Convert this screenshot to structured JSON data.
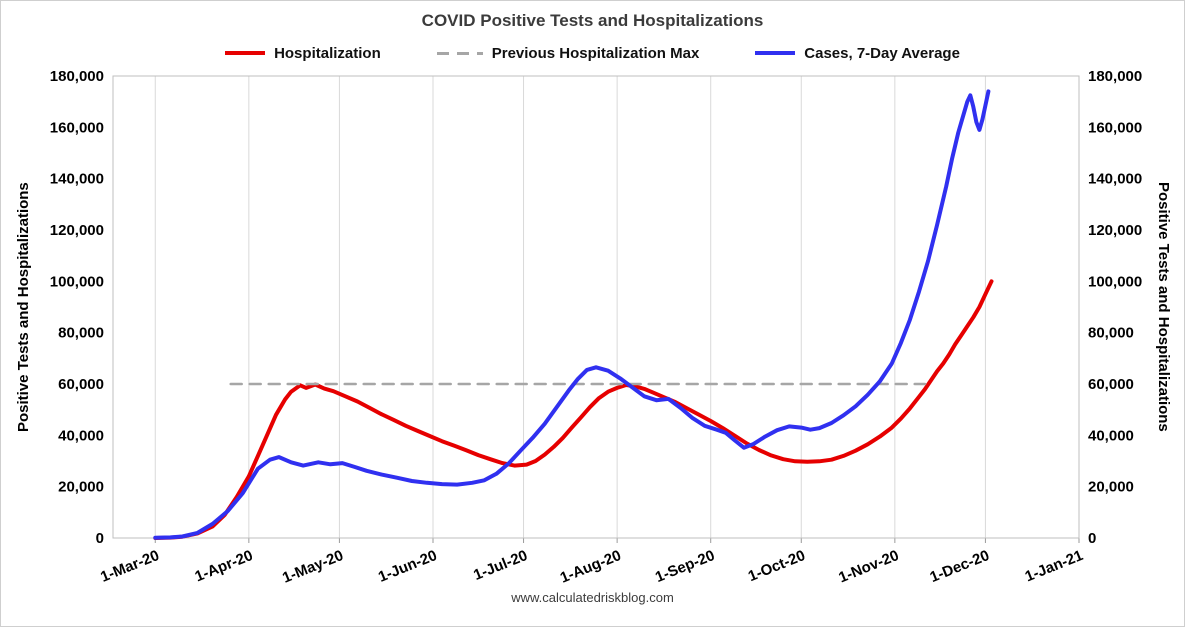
{
  "page": {
    "title": "COVID Positive Tests and Hospitalizations",
    "footer": "www.calculatedriskblog.com"
  },
  "legend": {
    "items": [
      {
        "label": "Hospitalization",
        "slug": "hospitalization",
        "color": "#e60000",
        "style": "solid"
      },
      {
        "label": "Previous Hospitalization Max",
        "slug": "previous-hospitalization-max",
        "color": "#a6a6a6",
        "style": "dashed"
      },
      {
        "label": "Cases, 7-Day Average",
        "slug": "cases-7-day-average",
        "color": "#3030f0",
        "style": "solid"
      }
    ]
  },
  "chart_data": {
    "type": "line",
    "title": "COVID Positive Tests and Hospitalizations",
    "ylabel": "Positive Tests and Hospitalizations",
    "ylim": [
      0,
      180000
    ],
    "ytick_step": 20000,
    "xlim": [
      -14,
      306
    ],
    "grid": "vertical-only",
    "legend_position": "top",
    "x_unit": "days since 1-Mar-20",
    "x_ticks": [
      {
        "day": 0,
        "label": "1-Mar-20"
      },
      {
        "day": 31,
        "label": "1-Apr-20"
      },
      {
        "day": 61,
        "label": "1-May-20"
      },
      {
        "day": 92,
        "label": "1-Jun-20"
      },
      {
        "day": 122,
        "label": "1-Jul-20"
      },
      {
        "day": 153,
        "label": "1-Aug-20"
      },
      {
        "day": 184,
        "label": "1-Sep-20"
      },
      {
        "day": 214,
        "label": "1-Oct-20"
      },
      {
        "day": 245,
        "label": "1-Nov-20"
      },
      {
        "day": 275,
        "label": "1-Dec-20"
      },
      {
        "day": 306,
        "label": "1-Jan-21"
      }
    ],
    "series": [
      {
        "name": "Hospitalization",
        "slug": "hospitalization-line",
        "color": "#e60000",
        "width": 4,
        "points": [
          [
            0,
            0
          ],
          [
            5,
            150
          ],
          [
            9,
            500
          ],
          [
            14,
            1800
          ],
          [
            19,
            4500
          ],
          [
            23,
            9000
          ],
          [
            27,
            16000
          ],
          [
            31,
            24000
          ],
          [
            34,
            32000
          ],
          [
            37,
            40000
          ],
          [
            40,
            48000
          ],
          [
            43,
            54000
          ],
          [
            45,
            57000
          ],
          [
            48,
            59500
          ],
          [
            50,
            58500
          ],
          [
            53,
            59800
          ],
          [
            56,
            58200
          ],
          [
            59,
            57200
          ],
          [
            63,
            55200
          ],
          [
            67,
            53200
          ],
          [
            71,
            50700
          ],
          [
            75,
            48200
          ],
          [
            79,
            46000
          ],
          [
            83,
            43700
          ],
          [
            87,
            41700
          ],
          [
            91,
            39700
          ],
          [
            95,
            37700
          ],
          [
            99,
            36000
          ],
          [
            103,
            34200
          ],
          [
            107,
            32300
          ],
          [
            111,
            30700
          ],
          [
            115,
            29200
          ],
          [
            119,
            28200
          ],
          [
            123,
            28600
          ],
          [
            126,
            30000
          ],
          [
            129,
            32500
          ],
          [
            132,
            35500
          ],
          [
            135,
            39000
          ],
          [
            138,
            43000
          ],
          [
            141,
            47000
          ],
          [
            144,
            51000
          ],
          [
            147,
            54500
          ],
          [
            150,
            57000
          ],
          [
            153,
            58500
          ],
          [
            156,
            59600
          ],
          [
            159,
            59100
          ],
          [
            162,
            58100
          ],
          [
            165,
            56600
          ],
          [
            168,
            55100
          ],
          [
            172,
            53100
          ],
          [
            176,
            50600
          ],
          [
            180,
            48100
          ],
          [
            184,
            45600
          ],
          [
            188,
            42800
          ],
          [
            192,
            39800
          ],
          [
            196,
            36800
          ],
          [
            200,
            34300
          ],
          [
            204,
            32200
          ],
          [
            208,
            30700
          ],
          [
            212,
            29900
          ],
          [
            216,
            29700
          ],
          [
            220,
            29900
          ],
          [
            224,
            30500
          ],
          [
            228,
            32000
          ],
          [
            232,
            34000
          ],
          [
            236,
            36500
          ],
          [
            240,
            39500
          ],
          [
            244,
            43000
          ],
          [
            247,
            46500
          ],
          [
            250,
            50500
          ],
          [
            253,
            55000
          ],
          [
            255,
            58000
          ],
          [
            257,
            61500
          ],
          [
            259,
            65000
          ],
          [
            261,
            68000
          ],
          [
            263,
            71500
          ],
          [
            265,
            75500
          ],
          [
            267,
            79000
          ],
          [
            269,
            82500
          ],
          [
            271,
            86000
          ],
          [
            273,
            90000
          ],
          [
            275,
            95000
          ],
          [
            276,
            97500
          ],
          [
            277,
            100000
          ]
        ]
      },
      {
        "name": "Previous Hospitalization Max",
        "slug": "previous-hospitalization-max-line",
        "color": "#a6a6a6",
        "width": 2.5,
        "dash": "11 8",
        "points": [
          [
            25,
            60000
          ],
          [
            255,
            60000
          ]
        ]
      },
      {
        "name": "Cases, 7-Day Average",
        "slug": "cases-7-day-average-line",
        "color": "#3030f0",
        "width": 4,
        "points": [
          [
            0,
            100
          ],
          [
            5,
            250
          ],
          [
            9,
            600
          ],
          [
            14,
            2000
          ],
          [
            19,
            5500
          ],
          [
            24,
            10500
          ],
          [
            29,
            17500
          ],
          [
            34,
            27000
          ],
          [
            38,
            30500
          ],
          [
            41,
            31500
          ],
          [
            45,
            29500
          ],
          [
            49,
            28200
          ],
          [
            54,
            29500
          ],
          [
            58,
            28700
          ],
          [
            62,
            29200
          ],
          [
            66,
            27700
          ],
          [
            70,
            26200
          ],
          [
            75,
            24700
          ],
          [
            80,
            23500
          ],
          [
            85,
            22200
          ],
          [
            90,
            21500
          ],
          [
            95,
            21000
          ],
          [
            100,
            20800
          ],
          [
            105,
            21500
          ],
          [
            109,
            22500
          ],
          [
            113,
            25000
          ],
          [
            117,
            29000
          ],
          [
            121,
            34000
          ],
          [
            125,
            39000
          ],
          [
            129,
            44500
          ],
          [
            133,
            51000
          ],
          [
            137,
            57500
          ],
          [
            140,
            62000
          ],
          [
            143,
            65500
          ],
          [
            146,
            66500
          ],
          [
            150,
            65200
          ],
          [
            154,
            62200
          ],
          [
            158,
            58700
          ],
          [
            162,
            55200
          ],
          [
            166,
            53700
          ],
          [
            170,
            54200
          ],
          [
            174,
            50700
          ],
          [
            178,
            46700
          ],
          [
            182,
            43700
          ],
          [
            186,
            42200
          ],
          [
            189,
            41000
          ],
          [
            192,
            38000
          ],
          [
            195,
            35200
          ],
          [
            198,
            36500
          ],
          [
            202,
            39500
          ],
          [
            206,
            42000
          ],
          [
            210,
            43500
          ],
          [
            214,
            43000
          ],
          [
            217,
            42200
          ],
          [
            220,
            42800
          ],
          [
            224,
            44800
          ],
          [
            228,
            47800
          ],
          [
            232,
            51300
          ],
          [
            236,
            55800
          ],
          [
            240,
            61000
          ],
          [
            244,
            68000
          ],
          [
            247,
            76000
          ],
          [
            250,
            85000
          ],
          [
            253,
            96000
          ],
          [
            256,
            108000
          ],
          [
            259,
            122000
          ],
          [
            262,
            137000
          ],
          [
            264,
            148000
          ],
          [
            266,
            158000
          ],
          [
            268,
            166000
          ],
          [
            269,
            170000
          ],
          [
            270,
            172500
          ],
          [
            271,
            168000
          ],
          [
            272,
            162000
          ],
          [
            273,
            159000
          ],
          [
            274,
            163000
          ],
          [
            275,
            168500
          ],
          [
            276,
            174000
          ]
        ]
      }
    ]
  }
}
